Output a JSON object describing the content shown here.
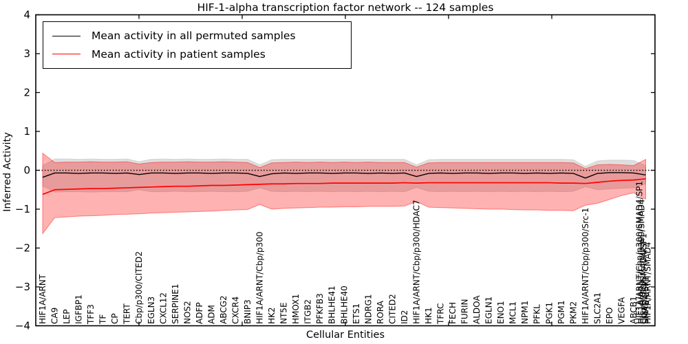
{
  "chart_data": {
    "type": "line",
    "title": "HIF-1-alpha transcription factor network -- 124 samples",
    "xlabel": "Cellular Entities",
    "ylabel": "Inferred Activity",
    "ylim": [
      -4,
      4
    ],
    "grid": false,
    "zero_reference_line": {
      "y": 0,
      "style": "dotted",
      "color": "#000000"
    },
    "y_ticks": [
      4,
      3,
      2,
      1,
      0,
      -1,
      -2,
      -3,
      -4
    ],
    "y_tick_labels": [
      "4",
      "3",
      "2",
      "1",
      "0",
      "−1",
      "−2",
      "−3",
      "−4"
    ],
    "legend": {
      "position": "upper left",
      "entries": [
        {
          "label": "Mean activity in all permuted samples",
          "color": "#000000"
        },
        {
          "label": "Mean activity in patient samples",
          "color": "#ff0000"
        }
      ]
    },
    "categories": [
      "HIF1A/ARNT",
      "CA9",
      "LEP",
      "IGFBP1",
      "TFF3",
      "TF",
      "CP",
      "TERT",
      "Cbp/p300/CITED2",
      "EGLN3",
      "CXCL12",
      "SERPINE1",
      "NOS2",
      "ADFP",
      "ADM",
      "ABCG2",
      "CXCR4",
      "BNIP3",
      "HIF1A/ARNT/Cbp/p300",
      "HK2",
      "NT5E",
      "HMOX1",
      "ITGB2",
      "PFKFB3",
      "BHLHE41",
      "BHLHE40",
      "ETS1",
      "NDRG1",
      "RORA",
      "CITED2",
      "ID2",
      "HIF1A/ARNT/Cbp/p300/HDAC7",
      "HK1",
      "TFRC",
      "FECH",
      "FURIN",
      "ALDOA",
      "EGLN1",
      "ENO1",
      "MCL1",
      "NPM1",
      "PFKL",
      "PGK1",
      "PGM1",
      "PKM2",
      "HIF1A/ARNT/Cbp/p300/Src-1",
      "SLC2A1",
      "EPO",
      "VEGFA",
      "ABCB1"
    ],
    "overlapping_end_labels": [
      "HIF1A/ARNT/Cbp/p300/SMAD4/SP1",
      "HIF1A/ARNT/Cbp/p300/SMAD4",
      "Cbp/p300/SMAD4/SP1",
      "HIF1A/ARNT/SMAD4",
      "SMAD4/SP1"
    ],
    "series": [
      {
        "name": "Mean activity in all permuted samples",
        "color": "#000000",
        "band_color": "#dedede",
        "values": [
          -0.18,
          -0.07,
          -0.07,
          -0.08,
          -0.07,
          -0.07,
          -0.08,
          -0.07,
          -0.11,
          -0.07,
          -0.07,
          -0.08,
          -0.07,
          -0.07,
          -0.08,
          -0.07,
          -0.07,
          -0.08,
          -0.16,
          -0.09,
          -0.07,
          -0.08,
          -0.07,
          -0.07,
          -0.08,
          -0.07,
          -0.07,
          -0.08,
          -0.07,
          -0.08,
          -0.07,
          -0.16,
          -0.08,
          -0.07,
          -0.08,
          -0.07,
          -0.07,
          -0.08,
          -0.07,
          -0.07,
          -0.08,
          -0.07,
          -0.08,
          -0.07,
          -0.08,
          -0.2,
          -0.08,
          -0.06,
          -0.06,
          -0.07,
          -0.12
        ],
        "band_upper": [
          0.12,
          0.29,
          0.29,
          0.28,
          0.29,
          0.28,
          0.28,
          0.29,
          0.22,
          0.28,
          0.29,
          0.28,
          0.29,
          0.28,
          0.28,
          0.29,
          0.28,
          0.28,
          0.14,
          0.27,
          0.28,
          0.28,
          0.28,
          0.28,
          0.28,
          0.28,
          0.28,
          0.28,
          0.28,
          0.28,
          0.28,
          0.14,
          0.27,
          0.28,
          0.28,
          0.28,
          0.28,
          0.28,
          0.28,
          0.28,
          0.28,
          0.28,
          0.28,
          0.28,
          0.27,
          0.1,
          0.24,
          0.26,
          0.26,
          0.25,
          0.12
        ],
        "band_lower": [
          -0.4,
          -0.56,
          -0.55,
          -0.55,
          -0.56,
          -0.55,
          -0.55,
          -0.55,
          -0.5,
          -0.55,
          -0.55,
          -0.54,
          -0.55,
          -0.55,
          -0.54,
          -0.55,
          -0.55,
          -0.54,
          -0.45,
          -0.54,
          -0.55,
          -0.54,
          -0.55,
          -0.54,
          -0.55,
          -0.54,
          -0.55,
          -0.54,
          -0.55,
          -0.54,
          -0.55,
          -0.44,
          -0.54,
          -0.55,
          -0.54,
          -0.55,
          -0.54,
          -0.55,
          -0.54,
          -0.55,
          -0.54,
          -0.55,
          -0.54,
          -0.55,
          -0.54,
          -0.42,
          -0.5,
          -0.48,
          -0.46,
          -0.45,
          -0.35
        ]
      },
      {
        "name": "Mean activity in patient samples",
        "color": "#ff0000",
        "band_color": "rgba(255,0,0,0.30)",
        "values": [
          -0.62,
          -0.5,
          -0.49,
          -0.48,
          -0.47,
          -0.47,
          -0.46,
          -0.45,
          -0.44,
          -0.43,
          -0.42,
          -0.41,
          -0.41,
          -0.4,
          -0.39,
          -0.39,
          -0.38,
          -0.37,
          -0.36,
          -0.35,
          -0.35,
          -0.34,
          -0.34,
          -0.34,
          -0.33,
          -0.33,
          -0.33,
          -0.33,
          -0.33,
          -0.33,
          -0.32,
          -0.33,
          -0.32,
          -0.32,
          -0.32,
          -0.32,
          -0.32,
          -0.32,
          -0.32,
          -0.32,
          -0.32,
          -0.32,
          -0.32,
          -0.33,
          -0.33,
          -0.34,
          -0.31,
          -0.28,
          -0.26,
          -0.25,
          -0.22
        ],
        "band_upper": [
          0.44,
          0.2,
          0.21,
          0.21,
          0.22,
          0.21,
          0.21,
          0.22,
          0.16,
          0.2,
          0.21,
          0.21,
          0.22,
          0.21,
          0.21,
          0.22,
          0.21,
          0.2,
          0.07,
          0.19,
          0.2,
          0.21,
          0.2,
          0.21,
          0.2,
          0.21,
          0.2,
          0.21,
          0.2,
          0.2,
          0.2,
          0.08,
          0.19,
          0.2,
          0.2,
          0.2,
          0.2,
          0.2,
          0.2,
          0.2,
          0.2,
          0.2,
          0.2,
          0.2,
          0.19,
          0.04,
          0.14,
          0.15,
          0.14,
          0.12,
          0.28
        ],
        "band_lower": [
          -1.63,
          -1.22,
          -1.2,
          -1.18,
          -1.17,
          -1.16,
          -1.14,
          -1.13,
          -1.12,
          -1.1,
          -1.09,
          -1.08,
          -1.07,
          -1.06,
          -1.05,
          -1.03,
          -1.02,
          -1.01,
          -0.88,
          -1.0,
          -0.98,
          -0.97,
          -0.96,
          -0.95,
          -0.95,
          -0.94,
          -0.94,
          -0.93,
          -0.93,
          -0.93,
          -0.92,
          -0.8,
          -0.95,
          -0.96,
          -0.97,
          -0.98,
          -0.99,
          -1.0,
          -1.0,
          -1.01,
          -1.02,
          -1.02,
          -1.03,
          -1.03,
          -1.04,
          -0.9,
          -0.85,
          -0.75,
          -0.65,
          -0.58,
          -0.74
        ]
      }
    ]
  }
}
